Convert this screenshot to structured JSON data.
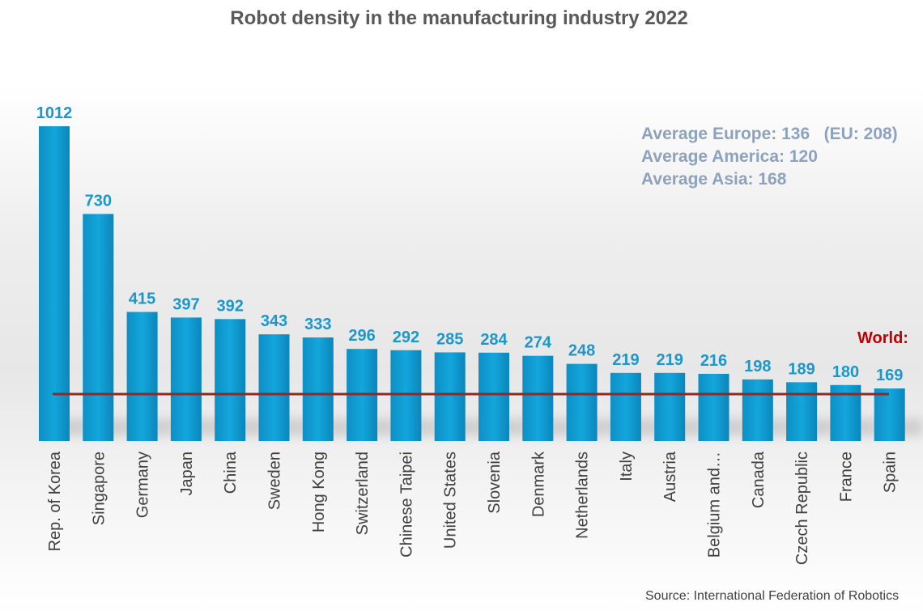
{
  "chart_data": {
    "type": "bar",
    "title": "Robot density in the manufacturing industry 2022",
    "categories": [
      "Rep. of Korea",
      "Singapore",
      "Germany",
      "Japan",
      "China",
      "Sweden",
      "Hong Kong",
      "Switzerland",
      "Chinese Taipei",
      "United States",
      "Slovenia",
      "Denmark",
      "Netherlands",
      "Italy",
      "Austria",
      "Belgium and…",
      "Canada",
      "Czech Republic",
      "France",
      "Spain"
    ],
    "values": [
      1012,
      730,
      415,
      397,
      392,
      343,
      333,
      296,
      292,
      285,
      284,
      274,
      248,
      219,
      219,
      216,
      198,
      189,
      180,
      169
    ],
    "value_labels": [
      "1012",
      "730",
      "415",
      "397",
      "392",
      "343",
      "333",
      "296",
      "292",
      "285",
      "284",
      "274",
      "248",
      "219",
      "219",
      "216",
      "198",
      "189",
      "180",
      "169"
    ],
    "ylim": [
      0,
      1012
    ],
    "xlabel": "",
    "ylabel": "",
    "grid": false,
    "reference_line": {
      "label": "World:",
      "value": 151
    },
    "annotations": [
      "Average Europe: 136   (EU: 208)",
      "Average America: 120",
      "Average Asia: 168"
    ],
    "source": "Source: International Federation of Robotics"
  },
  "colors": {
    "bar": "#0a9bd1",
    "bar_dark": "#0b7fb0",
    "value_label": "#1c97cc",
    "world_line": "#8c2a2a",
    "world_label": "#c00000",
    "annotation": "#8da2be"
  }
}
